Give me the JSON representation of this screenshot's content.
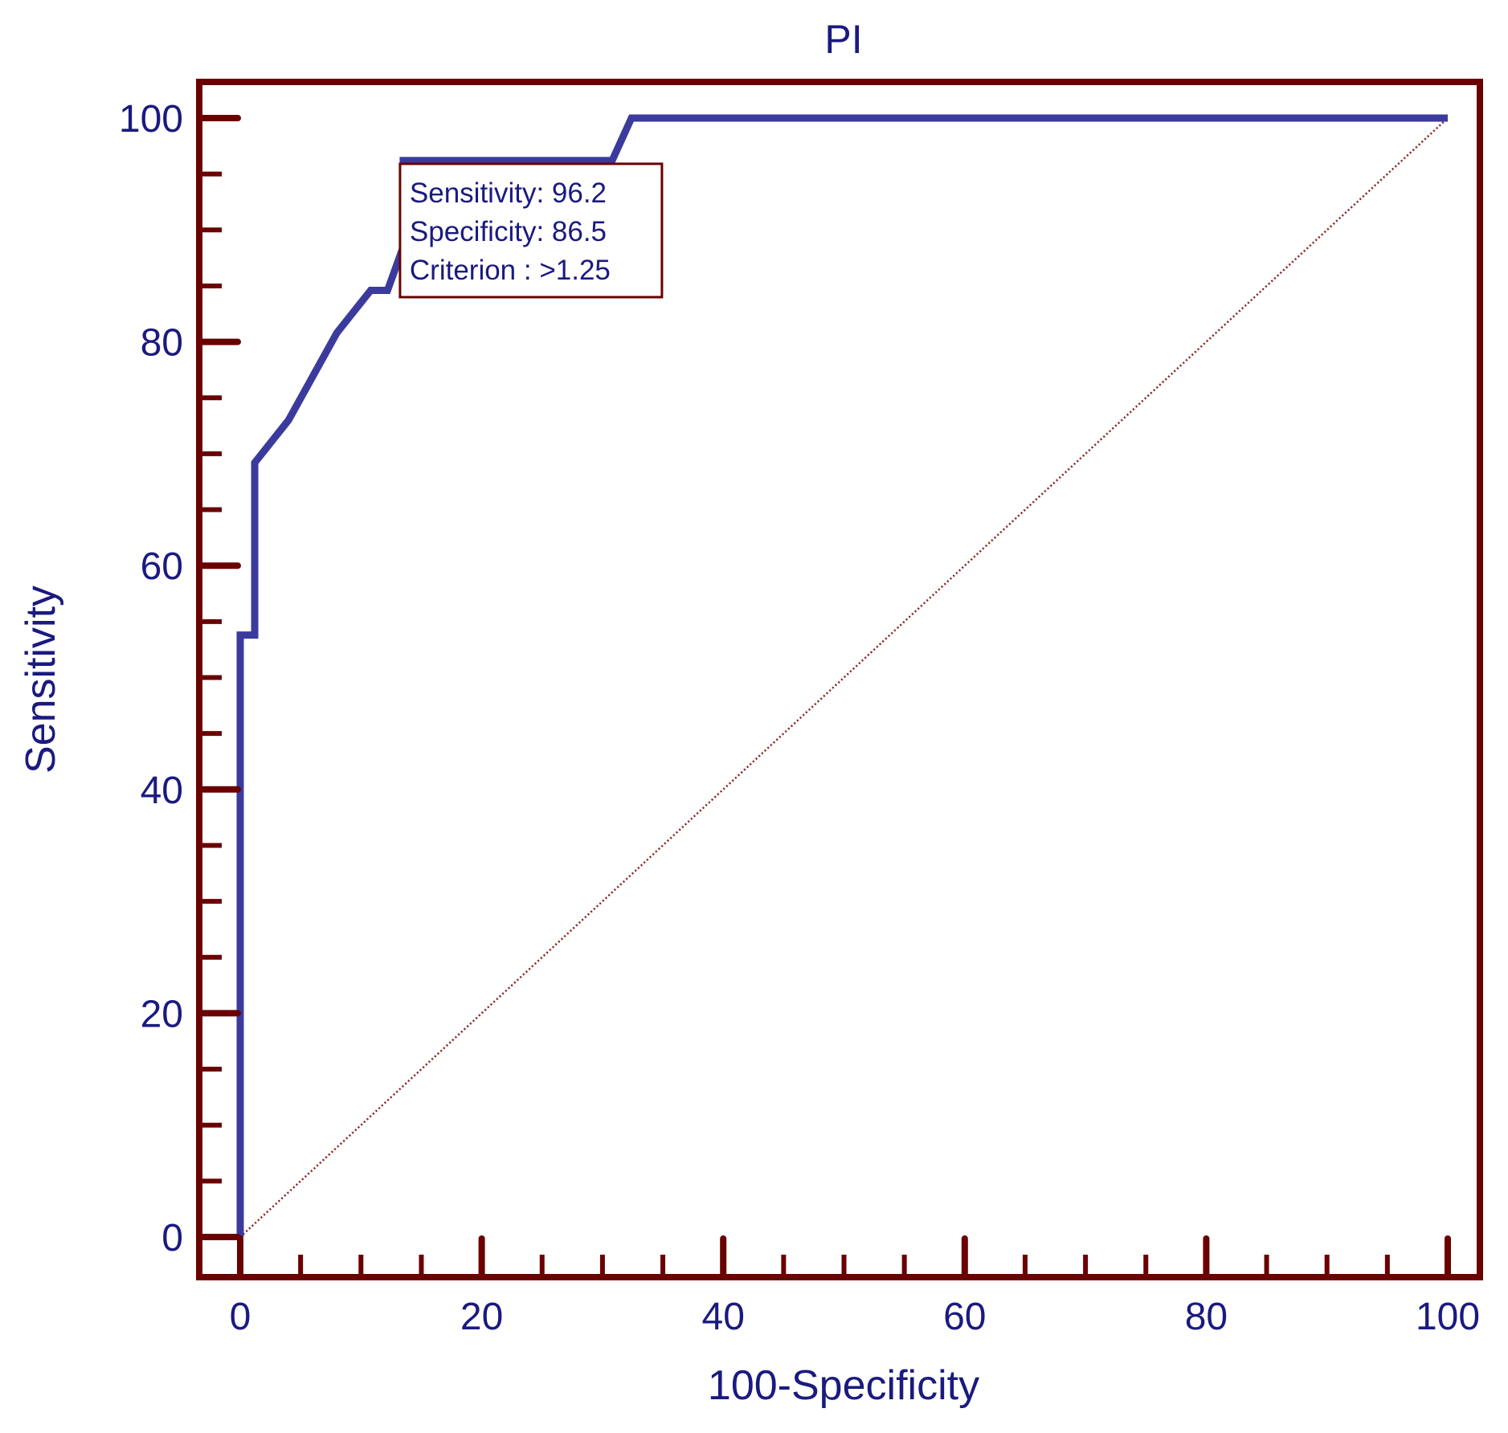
{
  "chart_data": {
    "type": "line",
    "title": "PI",
    "xlabel": "100-Specificity",
    "ylabel": "Sensitivity",
    "xlim": [
      0,
      100
    ],
    "ylim": [
      0,
      100
    ],
    "x_ticks": [
      0,
      20,
      40,
      60,
      80,
      100
    ],
    "y_ticks": [
      0,
      20,
      40,
      60,
      80,
      100
    ],
    "grid": false,
    "series": [
      {
        "color": "#3b3b9e",
        "x": [
          0,
          0,
          1.2,
          1.2,
          4,
          8,
          10.8,
          12.2,
          13.5,
          13.5,
          30.8,
          32.4,
          100
        ],
        "y": [
          0,
          53.8,
          53.8,
          69.2,
          73,
          80.8,
          84.6,
          84.6,
          88.5,
          96.2,
          96.2,
          100,
          100
        ]
      },
      {
        "color": "#8b1a1a",
        "style": "dotted",
        "x": [
          0,
          100
        ],
        "y": [
          0,
          100
        ]
      }
    ],
    "annotation": {
      "lines": [
        "Sensitivity: 96.2",
        "Specificity: 86.5",
        "Criterion : >1.25"
      ],
      "anchor_x": 13.5,
      "anchor_y": 96.2
    },
    "colors": {
      "frame": "#6b0000",
      "text": "#1a1a80"
    }
  }
}
